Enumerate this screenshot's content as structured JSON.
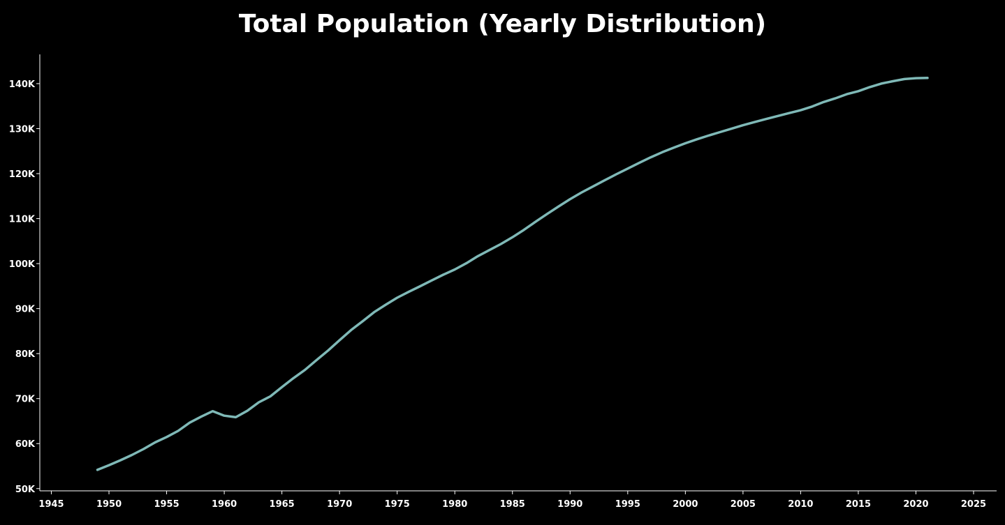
{
  "chart_data": {
    "type": "line",
    "title": "Total Population (Yearly Distribution)",
    "xlabel": "",
    "ylabel": "",
    "xlim": [
      1944,
      2027
    ],
    "ylim": [
      49500,
      146500
    ],
    "x_ticks": [
      1945,
      1950,
      1955,
      1960,
      1965,
      1970,
      1975,
      1980,
      1985,
      1990,
      1995,
      2000,
      2005,
      2010,
      2015,
      2020,
      2025
    ],
    "y_ticks": [
      {
        "value": 50000,
        "label": "50K"
      },
      {
        "value": 60000,
        "label": "60K"
      },
      {
        "value": 70000,
        "label": "70K"
      },
      {
        "value": 80000,
        "label": "80K"
      },
      {
        "value": 90000,
        "label": "90K"
      },
      {
        "value": 100000,
        "label": "100K"
      },
      {
        "value": 110000,
        "label": "110K"
      },
      {
        "value": 120000,
        "label": "120K"
      },
      {
        "value": 130000,
        "label": "130K"
      },
      {
        "value": 140000,
        "label": "140K"
      }
    ],
    "grid": false,
    "line_color": "#7fb9b7",
    "series": [
      {
        "x": [
          1949,
          1950,
          1951,
          1952,
          1953,
          1954,
          1955,
          1956,
          1957,
          1958,
          1959,
          1960,
          1961,
          1962,
          1963,
          1964,
          1965,
          1966,
          1967,
          1968,
          1969,
          1970,
          1971,
          1972,
          1973,
          1974,
          1975,
          1976,
          1977,
          1978,
          1979,
          1980,
          1981,
          1982,
          1983,
          1984,
          1985,
          1986,
          1987,
          1988,
          1989,
          1990,
          1991,
          1992,
          1993,
          1994,
          1995,
          1996,
          1997,
          1998,
          1999,
          2000,
          2001,
          2002,
          2003,
          2004,
          2005,
          2006,
          2007,
          2008,
          2009,
          2010,
          2011,
          2012,
          2013,
          2014,
          2015,
          2016,
          2017,
          2018,
          2019,
          2020,
          2021
        ],
        "values": [
          54167,
          55196,
          56300,
          57482,
          58796,
          60266,
          61465,
          62828,
          64653,
          65994,
          67207,
          66207,
          65859,
          67296,
          69172,
          70499,
          72538,
          74542,
          76368,
          78534,
          80671,
          82992,
          85229,
          87177,
          89211,
          90859,
          92420,
          93717,
          94974,
          96259,
          97542,
          98705,
          100072,
          101654,
          103008,
          104357,
          105851,
          107507,
          109300,
          111026,
          112704,
          114333,
          115823,
          117171,
          118517,
          119850,
          121121,
          122389,
          123626,
          124761,
          125786,
          126743,
          127627,
          128453,
          129227,
          129988,
          130756,
          131448,
          132129,
          132802,
          133450,
          134091,
          134916,
          135922,
          136726,
          137646,
          138326,
          139232,
          140011,
          140541,
          141008,
          141212,
          141260
        ]
      }
    ]
  }
}
